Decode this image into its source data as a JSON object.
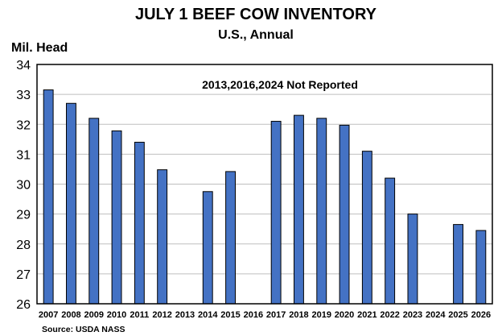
{
  "chart_data": {
    "type": "bar",
    "title": "JULY 1 BEEF COW INVENTORY",
    "subtitle": "U.S., Annual",
    "ylabel": "Mil. Head",
    "xlabel": "",
    "annotation": "2013,2016,2024 Not Reported",
    "source": "Source: USDA NASS",
    "ylim": [
      26,
      34
    ],
    "yticks": [
      "26",
      "27",
      "28",
      "29",
      "30",
      "31",
      "32",
      "33",
      "34"
    ],
    "grid": true,
    "legend": "none",
    "bar_color": "#4472C4",
    "categories": [
      "2007",
      "2008",
      "2009",
      "2010",
      "2011",
      "2012",
      "2013",
      "2014",
      "2015",
      "2016",
      "2017",
      "2018",
      "2019",
      "2020",
      "2021",
      "2022",
      "2023",
      "2024",
      "2025",
      "2026"
    ],
    "values": [
      33.15,
      32.7,
      32.2,
      31.78,
      31.4,
      30.48,
      null,
      29.75,
      30.42,
      null,
      32.1,
      32.3,
      32.2,
      31.97,
      31.1,
      30.2,
      29.0,
      null,
      28.65,
      28.45
    ]
  }
}
